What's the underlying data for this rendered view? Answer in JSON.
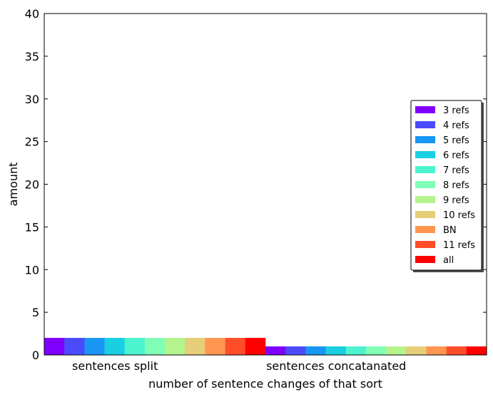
{
  "chart_data": {
    "type": "bar",
    "categories": [
      "sentences split",
      "sentences concatanated"
    ],
    "xlabel": "number of sentence changes of that sort",
    "ylabel": "amount",
    "ylim": [
      0,
      40
    ],
    "yticks": [
      "0",
      "5",
      "10",
      "15",
      "20",
      "25",
      "30",
      "35",
      "40"
    ],
    "grid": false,
    "legend_position": "center-right",
    "series": [
      {
        "name": "3 refs",
        "color": "#8000ff",
        "values": [
          2,
          1
        ]
      },
      {
        "name": "4 refs",
        "color": "#4b4bfc",
        "values": [
          2,
          1
        ]
      },
      {
        "name": "5 refs",
        "color": "#1996f3",
        "values": [
          2,
          1
        ]
      },
      {
        "name": "6 refs",
        "color": "#1bcfe3",
        "values": [
          2,
          1
        ]
      },
      {
        "name": "7 refs",
        "color": "#4df3ce",
        "values": [
          2,
          1
        ]
      },
      {
        "name": "8 refs",
        "color": "#81feb6",
        "values": [
          2,
          1
        ]
      },
      {
        "name": "9 refs",
        "color": "#b4f38e",
        "values": [
          2,
          1
        ]
      },
      {
        "name": "10 refs",
        "color": "#e5ce78",
        "values": [
          2,
          1
        ]
      },
      {
        "name": "BN",
        "color": "#ff964f",
        "values": [
          2,
          1
        ]
      },
      {
        "name": "11 refs",
        "color": "#ff4d2a",
        "values": [
          2,
          1
        ]
      },
      {
        "name": "all",
        "color": "#ff0000",
        "values": [
          2,
          1
        ]
      }
    ]
  }
}
